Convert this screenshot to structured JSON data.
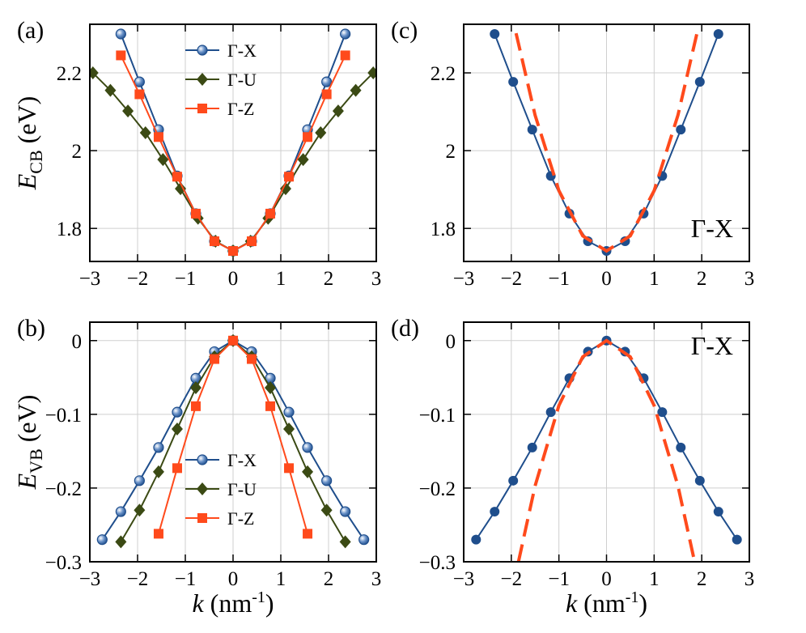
{
  "chart_data": [
    {
      "type": "line",
      "annotation": "(a)",
      "legend": "upper center",
      "ylabel": {
        "var": "E",
        "sub": "CB",
        "unit": "(eV)"
      },
      "xlim": [
        -3,
        3
      ],
      "ylim": [
        1.715,
        2.325
      ],
      "xticks": [
        {
          "value": -3,
          "label": "−3"
        },
        {
          "value": -2,
          "label": "−2"
        },
        {
          "value": -1,
          "label": "−1"
        },
        0,
        1,
        2,
        3
      ],
      "yticks": [
        1.8,
        2,
        2.2
      ],
      "grid": true,
      "series": [
        {
          "name": "Γ-X",
          "color": "#1f4e8c",
          "marker": "sphere",
          "x": [
            -2.35,
            -1.96,
            -1.56,
            -1.17,
            -0.78,
            -0.39,
            0,
            0.39,
            0.78,
            1.17,
            1.56,
            1.96,
            2.35
          ],
          "values": [
            2.3,
            2.177,
            2.054,
            1.935,
            1.838,
            1.767,
            1.742,
            1.767,
            1.838,
            1.935,
            2.054,
            2.177,
            2.3
          ]
        },
        {
          "name": "Γ-U",
          "color": "#3b4a14",
          "marker": "diamond",
          "x": [
            -2.936,
            -2.569,
            -2.202,
            -1.835,
            -1.468,
            -1.101,
            -0.734,
            -0.367,
            0,
            0.367,
            0.734,
            1.101,
            1.468,
            1.835,
            2.202,
            2.569,
            2.936
          ],
          "values": [
            2.2,
            2.155,
            2.102,
            2.046,
            1.977,
            1.902,
            1.826,
            1.767,
            1.742,
            1.767,
            1.826,
            1.902,
            1.977,
            2.046,
            2.102,
            2.155,
            2.2
          ]
        },
        {
          "name": "Γ-Z",
          "color": "#ff4a1c",
          "marker": "square",
          "x": [
            -2.35,
            -1.96,
            -1.56,
            -1.17,
            -0.78,
            -0.39,
            0,
            0.39,
            0.78,
            1.17,
            1.56,
            1.96,
            2.35
          ],
          "values": [
            2.245,
            2.145,
            2.035,
            1.933,
            1.838,
            1.767,
            1.742,
            1.767,
            1.838,
            1.933,
            2.035,
            2.145,
            2.245
          ]
        }
      ]
    },
    {
      "type": "line",
      "annotation": "(b)",
      "legend": "lower center",
      "ylabel": {
        "var": "E",
        "sub": "VB",
        "unit": "(eV)"
      },
      "xlabel": {
        "var": "k",
        "unit": "(nm",
        "sup": "-1",
        "close": ")"
      },
      "xlim": [
        -3,
        3
      ],
      "ylim": [
        -0.3,
        0.025
      ],
      "xticks": [
        {
          "value": -3,
          "label": "−3"
        },
        {
          "value": -2,
          "label": "−2"
        },
        {
          "value": -1,
          "label": "−1"
        },
        0,
        1,
        2,
        3
      ],
      "yticks": [
        0,
        {
          "value": -0.1,
          "label": "−0.1"
        },
        {
          "value": -0.2,
          "label": "−0.2"
        },
        {
          "value": -0.3,
          "label": "−0.3"
        }
      ],
      "grid": true,
      "series": [
        {
          "name": "Γ-X",
          "color": "#1f4e8c",
          "marker": "sphere",
          "x": [
            -2.74,
            -2.35,
            -1.96,
            -1.56,
            -1.17,
            -0.78,
            -0.39,
            0,
            0.39,
            0.78,
            1.17,
            1.56,
            1.96,
            2.35,
            2.74
          ],
          "values": [
            -0.27,
            -0.232,
            -0.19,
            -0.145,
            -0.097,
            -0.051,
            -0.015,
            0,
            -0.015,
            -0.051,
            -0.097,
            -0.145,
            -0.19,
            -0.232,
            -0.27
          ]
        },
        {
          "name": "Γ-U",
          "color": "#3b4a14",
          "marker": "diamond",
          "x": [
            -2.35,
            -1.96,
            -1.56,
            -1.17,
            -0.78,
            -0.39,
            0,
            0.39,
            0.78,
            1.17,
            1.56,
            1.96,
            2.35
          ],
          "values": [
            -0.273,
            -0.23,
            -0.178,
            -0.12,
            -0.064,
            -0.022,
            0,
            -0.022,
            -0.064,
            -0.12,
            -0.178,
            -0.23,
            -0.273
          ]
        },
        {
          "name": "Γ-Z",
          "color": "#ff4a1c",
          "marker": "square",
          "x": [
            -1.56,
            -1.17,
            -0.78,
            -0.39,
            0,
            0.39,
            0.78,
            1.17,
            1.56
          ],
          "values": [
            -0.262,
            -0.173,
            -0.089,
            -0.025,
            0,
            -0.025,
            -0.089,
            -0.173,
            -0.262
          ]
        }
      ]
    },
    {
      "type": "line",
      "annotation": "(c)",
      "label": "Γ-X",
      "xlim": [
        -3,
        3
      ],
      "ylim": [
        1.715,
        2.325
      ],
      "xticks": [
        {
          "value": -3,
          "label": "−3"
        },
        {
          "value": -2,
          "label": "−2"
        },
        {
          "value": -1,
          "label": "−1"
        },
        0,
        1,
        2,
        3
      ],
      "yticks": [
        1.8,
        2,
        2.2
      ],
      "grid": true,
      "series": [
        {
          "color": "#1f4e8c",
          "marker": "circle",
          "x": [
            -2.35,
            -1.96,
            -1.56,
            -1.17,
            -0.78,
            -0.39,
            0,
            0.39,
            0.78,
            1.17,
            1.56,
            1.96,
            2.35
          ],
          "values": [
            2.3,
            2.177,
            2.054,
            1.935,
            1.838,
            1.767,
            1.742,
            1.767,
            1.838,
            1.935,
            2.054,
            2.177,
            2.3
          ]
        },
        {
          "color": "#ff4a1c",
          "dashed": true,
          "x": [
            -1.9,
            -1.5,
            -1,
            -0.5,
            0,
            0.5,
            1,
            1.5,
            1.9
          ],
          "values": [
            2.302,
            2.091,
            1.897,
            1.781,
            1.742,
            1.781,
            1.897,
            2.091,
            2.302
          ]
        }
      ]
    },
    {
      "type": "line",
      "annotation": "(d)",
      "label": "Γ-X",
      "xlabel": {
        "var": "k",
        "unit": "(nm",
        "sup": "-1",
        "close": ")"
      },
      "xlim": [
        -3,
        3
      ],
      "ylim": [
        -0.3,
        0.025
      ],
      "xticks": [
        {
          "value": -3,
          "label": "−3"
        },
        {
          "value": -2,
          "label": "−2"
        },
        {
          "value": -1,
          "label": "−1"
        },
        0,
        1,
        2,
        3
      ],
      "yticks": [
        0,
        {
          "value": -0.1,
          "label": "−0.1"
        },
        {
          "value": -0.2,
          "label": "−0.2"
        },
        {
          "value": -0.3,
          "label": "−0.3"
        }
      ],
      "grid": true,
      "series": [
        {
          "color": "#1f4e8c",
          "marker": "circle",
          "x": [
            -2.74,
            -2.35,
            -1.96,
            -1.56,
            -1.17,
            -0.78,
            -0.39,
            0,
            0.39,
            0.78,
            1.17,
            1.56,
            1.96,
            2.35,
            2.74
          ],
          "values": [
            -0.27,
            -0.232,
            -0.19,
            -0.145,
            -0.097,
            -0.051,
            -0.015,
            0,
            -0.015,
            -0.051,
            -0.097,
            -0.145,
            -0.19,
            -0.232,
            -0.27
          ]
        },
        {
          "color": "#ff4a1c",
          "dashed": true,
          "x": [
            -1.85,
            -1.5,
            -1,
            -0.5,
            0,
            0.5,
            1,
            1.5,
            1.85
          ],
          "values": [
            -0.3,
            -0.197,
            -0.088,
            -0.022,
            0,
            -0.022,
            -0.088,
            -0.197,
            -0.3
          ]
        }
      ]
    }
  ]
}
